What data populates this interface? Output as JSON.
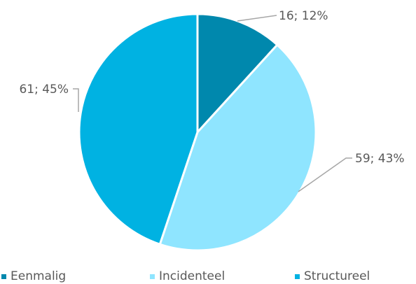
{
  "chart_data": {
    "type": "pie",
    "title": "",
    "start_angle_deg": 0,
    "direction": "clockwise",
    "slices": [
      {
        "name": "Eenmalig",
        "value": 16,
        "percent": 12,
        "label": "16; 12%",
        "color": "#0088AD"
      },
      {
        "name": "Incidenteel",
        "value": 59,
        "percent": 43,
        "label": "59; 43%",
        "color": "#8FE5FF"
      },
      {
        "name": "Structureel",
        "value": 61,
        "percent": 45,
        "label": "61; 45%",
        "color": "#00B2E2"
      }
    ],
    "legend": {
      "position": "bottom",
      "entries": [
        "Eenmalig",
        "Incidenteel",
        "Structureel"
      ]
    },
    "leader_line_color": "#A6A6A6",
    "label_color": "#595959"
  }
}
